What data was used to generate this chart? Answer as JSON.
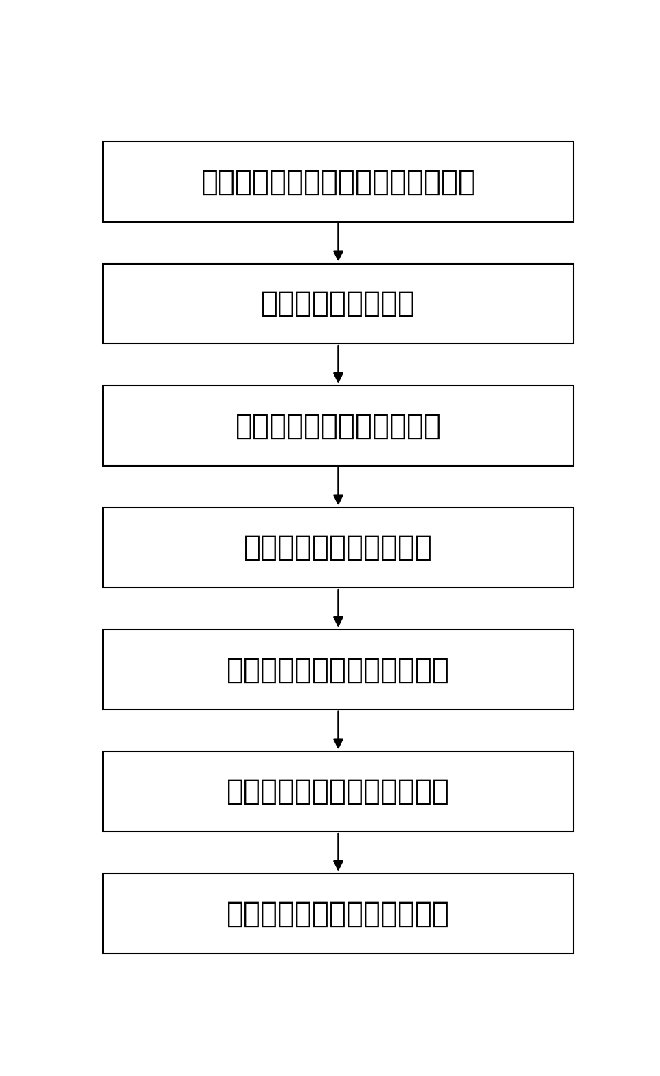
{
  "boxes": [
    {
      "text": "待检测高架桥路段安装检测器并调试"
    },
    {
      "text": "获取微波检测器数据"
    },
    {
      "text": "计算单个车道的当量交通量"
    },
    {
      "text": "计算单个车道的平均密度"
    },
    {
      "text": "计算单个车道的平均行驶速度"
    },
    {
      "text": "计算高架桥路段平均行驶速度"
    },
    {
      "text": "高架桥路段交通拥堵指数评估"
    }
  ],
  "fig_width": 9.61,
  "fig_height": 15.66,
  "font_size": 30,
  "box_color": "#ffffff",
  "box_edgecolor": "#000000",
  "arrow_color": "#000000",
  "text_color": "#000000",
  "background_color": "#ffffff",
  "linewidth": 1.5,
  "arrow_linewidth": 1.8,
  "arrow_mutation_scale": 22
}
